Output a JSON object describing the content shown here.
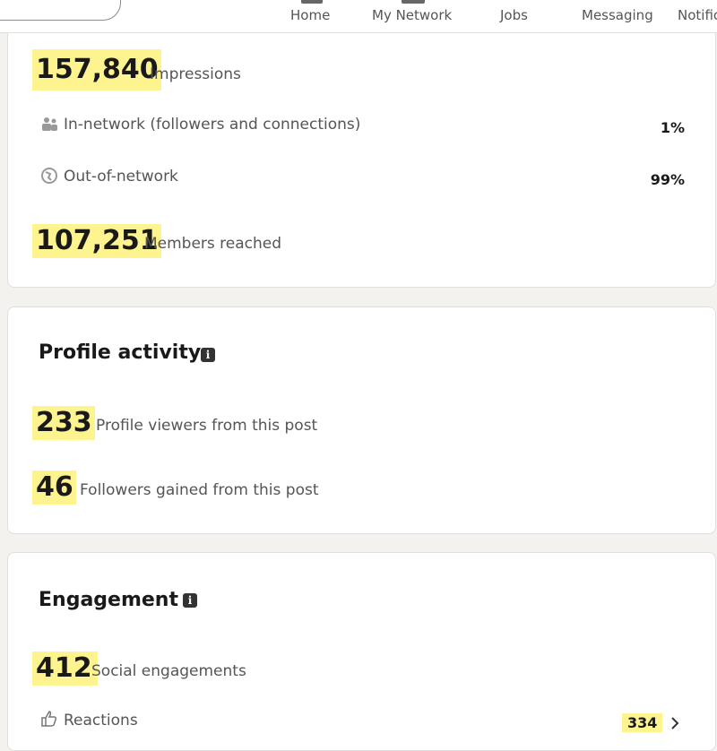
{
  "nav": {
    "items": [
      "Home",
      "My Network",
      "Jobs",
      "Messaging",
      "Notifications"
    ]
  },
  "discovery": {
    "impressions": {
      "value": "157,840",
      "label": "Impressions"
    },
    "rows": [
      {
        "label": "In-network (followers and connections)",
        "value": "1%"
      },
      {
        "label": "Out-of-network",
        "value": "99%"
      }
    ],
    "members_reached": {
      "value": "107,251",
      "label": "Members reached"
    }
  },
  "profile_activity": {
    "title": "Profile activity",
    "stats": [
      {
        "value": "233",
        "label": "Profile viewers from this post"
      },
      {
        "value": "46",
        "label": "Followers gained from this post"
      }
    ]
  },
  "engagement": {
    "title": "Engagement",
    "social": {
      "value": "412",
      "label": "Social engagements"
    },
    "reactions": {
      "label": "Reactions",
      "value": "334"
    }
  }
}
